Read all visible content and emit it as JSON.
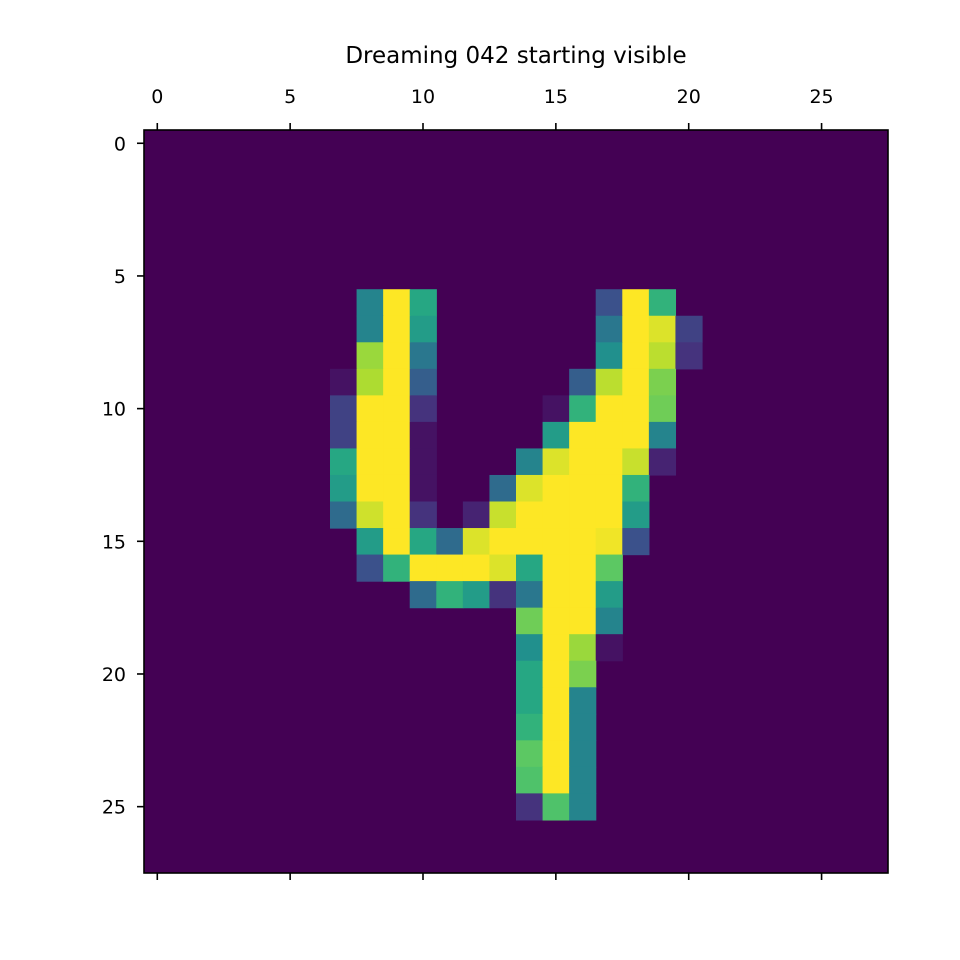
{
  "chart_data": {
    "type": "heatmap",
    "title": "Dreaming 042 starting visible",
    "colormap": "viridis",
    "value_range": [
      0,
      1
    ],
    "rows": 28,
    "cols": 28,
    "x_ticks": [
      0,
      5,
      10,
      15,
      20,
      25
    ],
    "y_ticks": [
      0,
      5,
      10,
      15,
      20,
      25
    ],
    "x_tick_labels": [
      "0",
      "5",
      "10",
      "15",
      "20",
      "25"
    ],
    "y_tick_labels": [
      "0",
      "5",
      "10",
      "15",
      "20",
      "25"
    ],
    "x_axis_position": "top",
    "grid": false,
    "cells": [
      {
        "row": 6,
        "values": {
          "8": 0.45,
          "9": 1.0,
          "10": 0.6,
          "17": 0.25,
          "18": 1.0,
          "19": 0.65
        }
      },
      {
        "row": 7,
        "values": {
          "8": 0.45,
          "9": 1.0,
          "10": 0.55,
          "17": 0.4,
          "18": 1.0,
          "19": 0.95,
          "20": 0.2
        }
      },
      {
        "row": 8,
        "values": {
          "8": 0.85,
          "9": 1.0,
          "10": 0.4,
          "17": 0.5,
          "18": 1.0,
          "19": 0.9,
          "20": 0.15
        }
      },
      {
        "row": 9,
        "values": {
          "7": 0.05,
          "8": 0.88,
          "9": 1.0,
          "10": 0.3,
          "16": 0.3,
          "17": 0.9,
          "18": 1.0,
          "19": 0.8
        }
      },
      {
        "row": 10,
        "values": {
          "7": 0.2,
          "8": 1.0,
          "9": 1.0,
          "10": 0.15,
          "15": 0.05,
          "16": 0.65,
          "17": 1.0,
          "18": 1.0,
          "19": 0.78
        }
      },
      {
        "row": 11,
        "values": {
          "7": 0.2,
          "8": 1.0,
          "9": 1.0,
          "10": 0.05,
          "15": 0.55,
          "16": 1.0,
          "17": 1.0,
          "18": 1.0,
          "19": 0.45
        }
      },
      {
        "row": 12,
        "values": {
          "7": 0.6,
          "8": 1.0,
          "9": 1.0,
          "10": 0.05,
          "14": 0.45,
          "15": 0.95,
          "16": 1.0,
          "17": 1.0,
          "18": 0.92,
          "19": 0.1
        }
      },
      {
        "row": 13,
        "values": {
          "7": 0.55,
          "8": 1.0,
          "9": 1.0,
          "10": 0.05,
          "13": 0.35,
          "14": 0.95,
          "15": 1.0,
          "16": 1.0,
          "17": 1.0,
          "18": 0.65
        }
      },
      {
        "row": 14,
        "values": {
          "7": 0.35,
          "8": 0.93,
          "9": 1.0,
          "10": 0.15,
          "12": 0.1,
          "13": 0.92,
          "14": 1.0,
          "15": 1.0,
          "16": 1.0,
          "17": 1.0,
          "18": 0.55
        }
      },
      {
        "row": 15,
        "values": {
          "8": 0.55,
          "9": 1.0,
          "10": 0.6,
          "11": 0.35,
          "12": 0.95,
          "13": 1.0,
          "14": 1.0,
          "15": 1.0,
          "16": 1.0,
          "17": 0.98,
          "18": 0.25
        }
      },
      {
        "row": 16,
        "values": {
          "8": 0.25,
          "9": 0.65,
          "10": 1.0,
          "11": 1.0,
          "12": 1.0,
          "13": 0.95,
          "14": 0.6,
          "15": 1.0,
          "16": 1.0,
          "17": 0.75
        }
      },
      {
        "row": 17,
        "values": {
          "10": 0.35,
          "11": 0.65,
          "12": 0.55,
          "13": 0.15,
          "14": 0.4,
          "15": 1.0,
          "16": 1.0,
          "17": 0.55
        }
      },
      {
        "row": 18,
        "values": {
          "14": 0.78,
          "15": 1.0,
          "16": 1.0,
          "17": 0.45
        }
      },
      {
        "row": 19,
        "values": {
          "14": 0.5,
          "15": 1.0,
          "16": 0.85,
          "17": 0.05
        }
      },
      {
        "row": 20,
        "values": {
          "14": 0.6,
          "15": 1.0,
          "16": 0.8
        }
      },
      {
        "row": 21,
        "values": {
          "14": 0.6,
          "15": 1.0,
          "16": 0.45
        }
      },
      {
        "row": 22,
        "values": {
          "14": 0.65,
          "15": 1.0,
          "16": 0.45
        }
      },
      {
        "row": 23,
        "values": {
          "14": 0.75,
          "15": 1.0,
          "16": 0.45
        }
      },
      {
        "row": 24,
        "values": {
          "14": 0.72,
          "15": 1.0,
          "16": 0.45
        }
      },
      {
        "row": 25,
        "values": {
          "14": 0.15,
          "15": 0.72,
          "16": 0.45
        }
      }
    ]
  }
}
